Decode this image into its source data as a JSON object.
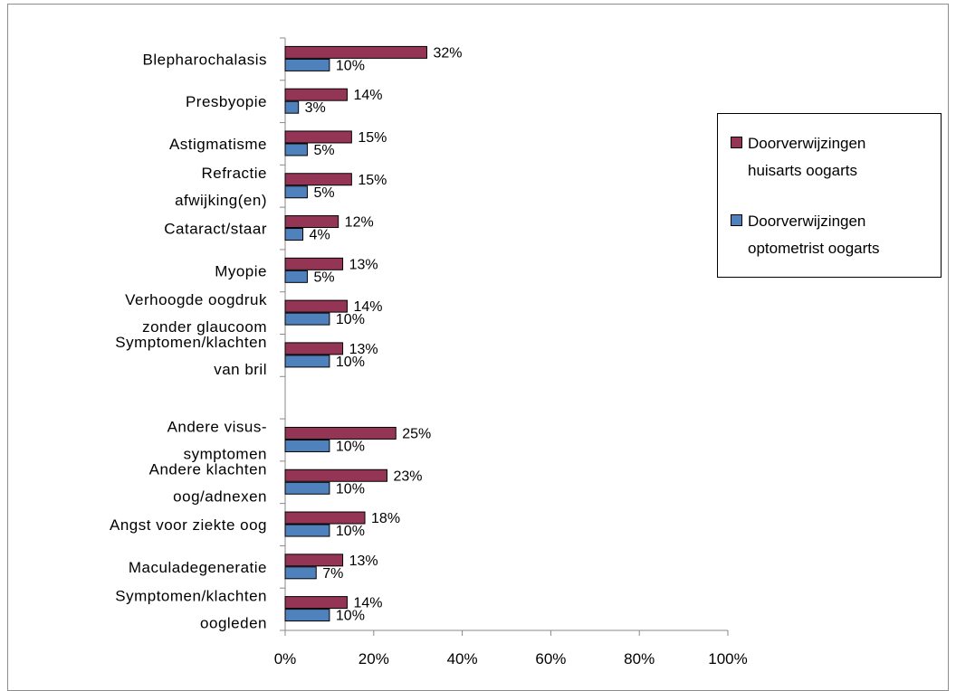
{
  "chart_data": {
    "type": "bar",
    "orientation": "horizontal",
    "categories": [
      [
        "Blepharochalasis"
      ],
      [
        "Presbyopie"
      ],
      [
        "Astigmatisme"
      ],
      [
        "Refractie",
        "afwijking(en)"
      ],
      [
        "Cataract/staar"
      ],
      [
        "Myopie"
      ],
      [
        "Verhoogde oogdruk",
        "zonder glaucoom"
      ],
      [
        "Symptomen/klachten",
        "van bril"
      ],
      [],
      [
        "Andere visus-",
        "symptomen"
      ],
      [
        "Andere klachten",
        "oog/adnexen"
      ],
      [
        "Angst voor ziekte oog"
      ],
      [
        "Maculadegeneratie"
      ],
      [
        "Symptomen/klachten",
        "oogleden"
      ]
    ],
    "series": [
      {
        "name": "Doorverwijzingen huisarts oogarts",
        "legend_lines": [
          "Doorverwijzingen",
          "huisarts oogarts"
        ],
        "color": "#953555",
        "values": [
          32,
          14,
          15,
          15,
          12,
          13,
          14,
          13,
          null,
          25,
          23,
          18,
          13,
          14
        ],
        "labels": [
          "32%",
          "14%",
          "15%",
          "15%",
          "12%",
          "13%",
          "14%",
          "13%",
          "",
          "25%",
          "23%",
          "18%",
          "13%",
          "14%"
        ]
      },
      {
        "name": "Doorverwijzingen optometrist oogarts",
        "legend_lines": [
          "Doorverwijzingen",
          "optometrist oogarts"
        ],
        "color": "#4f81bd",
        "values": [
          10,
          3,
          5,
          5,
          4,
          5,
          10,
          10,
          null,
          10,
          10,
          10,
          7,
          10
        ],
        "labels": [
          "10%",
          "3%",
          "5%",
          "5%",
          "4%",
          "5%",
          "10%",
          "10%",
          "",
          "10%",
          "10%",
          "10%",
          "7%",
          "10%"
        ]
      }
    ],
    "xlim": [
      0,
      100
    ],
    "xticks": [
      0,
      20,
      40,
      60,
      80,
      100
    ],
    "xtick_labels": [
      "0%",
      "20%",
      "40%",
      "60%",
      "80%",
      "100%"
    ],
    "legend_position": "right",
    "grid": false
  }
}
